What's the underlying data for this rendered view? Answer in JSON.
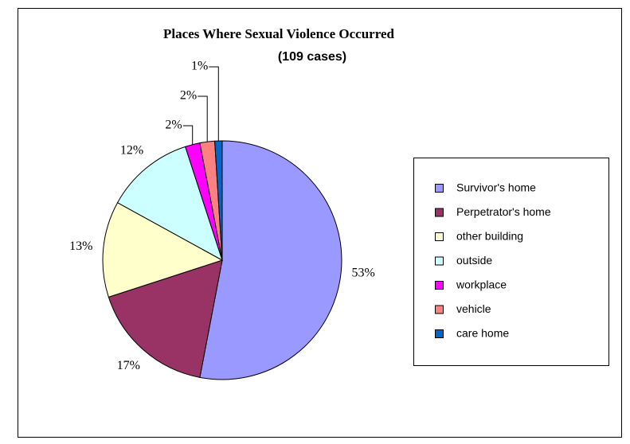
{
  "chart_data": {
    "type": "pie",
    "title": "Places Where Sexual Violence Occurred",
    "subtitle": "(109 cases)",
    "categories": [
      "Survivor's home",
      "Perpetrator's home",
      "other building",
      "outside",
      "workplace",
      "vehicle",
      "care home"
    ],
    "values": [
      53,
      17,
      13,
      12,
      2,
      2,
      1
    ],
    "value_labels": [
      "53%",
      "17%",
      "13%",
      "12%",
      "2%",
      "2%",
      "1%"
    ],
    "colors": [
      "#9999ff",
      "#993366",
      "#ffffcc",
      "#ccffff",
      "#ff00ff",
      "#ff8080",
      "#0066cc"
    ],
    "legend": "right"
  }
}
